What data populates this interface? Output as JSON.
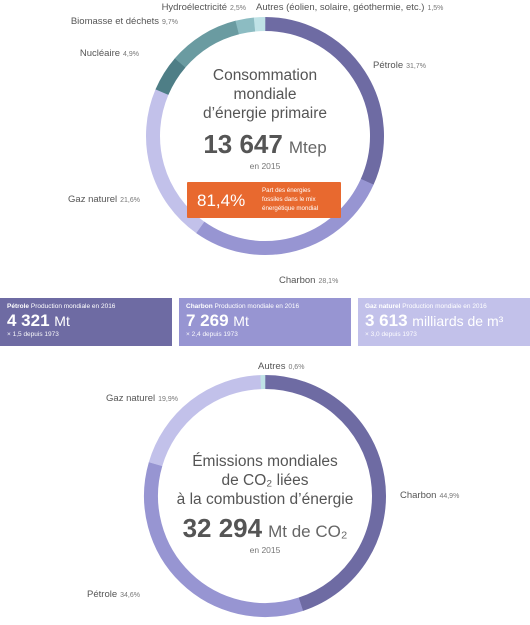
{
  "colors": {
    "petrole": "#6e6ba3",
    "charbon": "#9795d2",
    "gaz": "#c2c1ea",
    "nucleaire": "#4e7e86",
    "biomasse": "#6a9ba1",
    "hydro": "#8cbcc2",
    "autres": "#bfe2e6",
    "autres_emis": "#bfe2e6",
    "accent": "#e8692f"
  },
  "chart_data": [
    {
      "type": "pie",
      "center": {
        "title_lines": [
          "Consommation",
          "mondiale",
          "d’énergie primaire"
        ],
        "value": "13 647",
        "unit": "Mtep",
        "year": "en 2015"
      },
      "badge": {
        "value": "81,4%",
        "text_lines": [
          "Part des énergies",
          "fossiles dans le mix",
          "énergétique mondial"
        ]
      },
      "slices": [
        {
          "name": "Pétrole",
          "pct_label": "31,7%",
          "value": 31.7,
          "color": "petrole"
        },
        {
          "name": "Charbon",
          "pct_label": "28,1%",
          "value": 28.1,
          "color": "charbon"
        },
        {
          "name": "Gaz naturel",
          "pct_label": "21,6%",
          "value": 21.6,
          "color": "gaz"
        },
        {
          "name": "Nucléaire",
          "pct_label": "4,9%",
          "value": 4.9,
          "color": "nucleaire"
        },
        {
          "name": "Biomasse et déchets",
          "pct_label": "9,7%",
          "value": 9.7,
          "color": "biomasse"
        },
        {
          "name": "Hydroélectricité",
          "pct_label": "2,5%",
          "value": 2.5,
          "color": "hydro"
        },
        {
          "name": "Autres (éolien, solaire, géothermie, etc.)",
          "pct_label": "1,5%",
          "value": 1.5,
          "color": "autres"
        }
      ]
    },
    {
      "type": "pie",
      "center": {
        "title_lines": [
          "Émissions mondiales",
          "de CO₂ liées",
          "à la combustion d’énergie"
        ],
        "value": "32 294",
        "unit": "Mt de CO₂",
        "year": "en 2015"
      },
      "slices": [
        {
          "name": "Charbon",
          "pct_label": "44,9%",
          "value": 44.9,
          "color": "petrole"
        },
        {
          "name": "Pétrole",
          "pct_label": "34,6%",
          "value": 34.6,
          "color": "charbon"
        },
        {
          "name": "Gaz naturel",
          "pct_label": "19,9%",
          "value": 19.9,
          "color": "gaz"
        },
        {
          "name": "Autres",
          "pct_label": "0,6%",
          "value": 0.6,
          "color": "autres_emis"
        }
      ]
    }
  ],
  "production_boxes": [
    {
      "name": "Pétrole",
      "header": "Production mondiale en 2016",
      "value": "4 321",
      "unit": "Mt",
      "growth": "× 1,5 depuis 1973",
      "color": "petrole"
    },
    {
      "name": "Charbon",
      "header": "Production mondiale en 2016",
      "value": "7 269",
      "unit": "Mt",
      "growth": "× 2,4 depuis 1973",
      "color": "charbon"
    },
    {
      "name": "Gaz naturel",
      "header": "Production mondiale en 2016",
      "value": "3 613",
      "unit": "milliards de m³",
      "growth": "× 3,0 depuis 1973",
      "color": "gaz"
    }
  ]
}
